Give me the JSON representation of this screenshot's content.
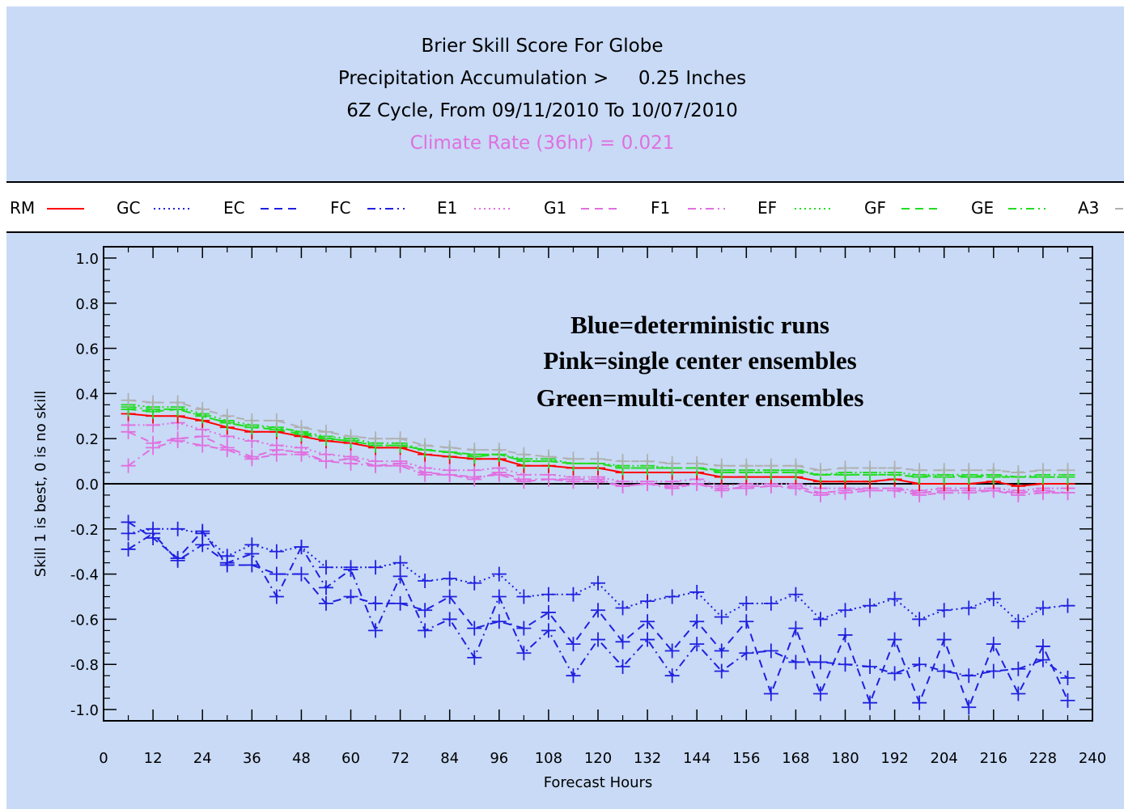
{
  "window": {
    "title_lines": [
      "Brier Skill Score For Globe",
      "Precipitation Accumulation >     0.25 Inches",
      "6Z Cycle, From 09/11/2010 To 10/07/2010",
      "Climate Rate (36hr) = 0.021"
    ]
  },
  "annotation": {
    "lines": [
      "Blue=deterministic runs",
      "Pink=single center ensembles",
      "Green=multi-center ensembles"
    ]
  },
  "colors": {
    "background": "#c8daf6",
    "red": "#ff0000",
    "blue": "#2020e0",
    "pink": "#e070e0",
    "green": "#22dd22",
    "gray": "#b0b0b0"
  },
  "legend": [
    {
      "name": "RM",
      "color": "#ff0000",
      "style": "solid"
    },
    {
      "name": "GC",
      "color": "#2020e0",
      "style": "dotted"
    },
    {
      "name": "EC",
      "color": "#2020e0",
      "style": "dashed"
    },
    {
      "name": "FC",
      "color": "#2020e0",
      "style": "dashdot"
    },
    {
      "name": "E1",
      "color": "#e070e0",
      "style": "dotted"
    },
    {
      "name": "G1",
      "color": "#e070e0",
      "style": "dashed"
    },
    {
      "name": "F1",
      "color": "#e070e0",
      "style": "dashdot"
    },
    {
      "name": "EF",
      "color": "#22dd22",
      "style": "dotted"
    },
    {
      "name": "GF",
      "color": "#22dd22",
      "style": "dashed"
    },
    {
      "name": "GE",
      "color": "#22dd22",
      "style": "dashdot"
    },
    {
      "name": "A3",
      "color": "#b0b0b0",
      "style": "dashed"
    }
  ],
  "chart_data": {
    "type": "line",
    "xlabel": "Forecast Hours",
    "ylabel": "Skill 1 is best, 0 is no skill",
    "xlim": [
      0,
      240
    ],
    "ylim": [
      -1.05,
      1.05
    ],
    "xticks": [
      "0",
      "12",
      "24",
      "36",
      "48",
      "60",
      "72",
      "84",
      "96",
      "108",
      "120",
      "132",
      "144",
      "156",
      "168",
      "180",
      "192",
      "204",
      "216",
      "228",
      "240"
    ],
    "yticks": [
      "1.0",
      "0.8",
      "0.6",
      "0.4",
      "0.2",
      "0.0",
      "-0.2",
      "-0.4",
      "-0.6",
      "-0.8",
      "-1.0"
    ],
    "x": [
      6,
      12,
      18,
      24,
      30,
      36,
      42,
      48,
      54,
      60,
      66,
      72,
      78,
      84,
      90,
      96,
      102,
      108,
      114,
      120,
      126,
      132,
      138,
      144,
      150,
      156,
      162,
      168,
      174,
      180,
      186,
      192,
      198,
      204,
      210,
      216,
      222,
      228,
      234
    ],
    "series": [
      {
        "name": "GC",
        "color": "#2020e0",
        "style": "dotted",
        "values": [
          -0.22,
          -0.2,
          -0.2,
          -0.22,
          -0.32,
          -0.27,
          -0.3,
          -0.28,
          -0.37,
          -0.37,
          -0.37,
          -0.35,
          -0.43,
          -0.42,
          -0.44,
          -0.4,
          -0.5,
          -0.49,
          -0.49,
          -0.44,
          -0.55,
          -0.52,
          -0.5,
          -0.48,
          -0.59,
          -0.53,
          -0.53,
          -0.49,
          -0.6,
          -0.56,
          -0.54,
          -0.51,
          -0.6,
          -0.56,
          -0.55,
          -0.51,
          -0.61,
          -0.55,
          -0.54
        ]
      },
      {
        "name": "EC",
        "color": "#2020e0",
        "style": "dashed",
        "values": [
          -0.17,
          -0.24,
          -0.33,
          -0.21,
          -0.36,
          -0.36,
          -0.4,
          -0.4,
          -0.53,
          -0.5,
          -0.53,
          -0.53,
          -0.56,
          -0.5,
          -0.64,
          -0.61,
          -0.64,
          -0.57,
          -0.71,
          -0.56,
          -0.7,
          -0.61,
          -0.74,
          -0.61,
          -0.74,
          -0.61,
          -0.93,
          -0.64,
          -0.93,
          -0.67,
          -0.97,
          -0.69,
          -0.97,
          -0.69,
          -0.99,
          -0.71,
          -0.93,
          -0.72,
          -0.96
        ]
      },
      {
        "name": "FC",
        "color": "#2020e0",
        "style": "dashdot",
        "values": [
          -0.29,
          -0.22,
          -0.34,
          -0.27,
          -0.35,
          -0.31,
          -0.5,
          -0.28,
          -0.46,
          -0.38,
          -0.65,
          -0.41,
          -0.65,
          -0.6,
          -0.77,
          -0.5,
          -0.75,
          -0.65,
          -0.85,
          -0.69,
          -0.81,
          -0.69,
          -0.85,
          -0.71,
          -0.83,
          -0.75,
          -0.74,
          -0.79,
          -0.79,
          -0.8,
          -0.81,
          -0.84,
          -0.8,
          -0.83,
          -0.85,
          -0.83,
          -0.82,
          -0.78,
          -0.86
        ]
      },
      {
        "name": "E1",
        "color": "#e070e0",
        "style": "dotted",
        "values": [
          0.26,
          0.26,
          0.27,
          0.24,
          0.21,
          0.19,
          0.17,
          0.16,
          0.13,
          0.12,
          0.1,
          0.1,
          0.07,
          0.06,
          0.06,
          0.07,
          0.04,
          0.04,
          0.03,
          0.03,
          0.01,
          0.01,
          0.01,
          0.02,
          -0.01,
          0.0,
          0.0,
          0.0,
          -0.02,
          -0.02,
          -0.02,
          -0.02,
          -0.03,
          -0.02,
          -0.02,
          -0.02,
          -0.03,
          -0.02,
          -0.02
        ]
      },
      {
        "name": "G1",
        "color": "#e070e0",
        "style": "dashed",
        "values": [
          0.23,
          0.18,
          0.2,
          0.21,
          0.16,
          0.12,
          0.15,
          0.14,
          0.1,
          0.11,
          0.08,
          0.09,
          0.05,
          0.04,
          0.03,
          0.04,
          0.01,
          0.02,
          0.01,
          0.01,
          -0.01,
          0.0,
          -0.01,
          0.0,
          -0.02,
          -0.02,
          -0.01,
          -0.01,
          -0.04,
          -0.03,
          -0.02,
          -0.02,
          -0.04,
          -0.03,
          -0.03,
          -0.03,
          -0.04,
          -0.03,
          -0.04
        ]
      },
      {
        "name": "F1",
        "color": "#e070e0",
        "style": "dashdot",
        "values": [
          0.08,
          0.16,
          0.19,
          0.17,
          0.15,
          0.11,
          0.13,
          0.13,
          0.1,
          0.09,
          0.08,
          0.08,
          0.04,
          0.04,
          0.02,
          0.05,
          0.02,
          0.02,
          0.02,
          0.02,
          -0.01,
          0.0,
          -0.02,
          0.0,
          -0.03,
          -0.01,
          -0.01,
          -0.02,
          -0.05,
          -0.04,
          -0.03,
          -0.03,
          -0.05,
          -0.04,
          -0.04,
          -0.03,
          -0.05,
          -0.04,
          -0.04
        ]
      },
      {
        "name": "RM",
        "color": "#ff0000",
        "style": "solid",
        "values": [
          0.31,
          0.3,
          0.3,
          0.28,
          0.25,
          0.23,
          0.23,
          0.21,
          0.19,
          0.18,
          0.16,
          0.16,
          0.13,
          0.12,
          0.11,
          0.11,
          0.08,
          0.08,
          0.07,
          0.07,
          0.05,
          0.05,
          0.05,
          0.05,
          0.03,
          0.03,
          0.03,
          0.03,
          0.01,
          0.01,
          0.01,
          0.02,
          0.0,
          0.0,
          0.0,
          0.01,
          -0.01,
          0.0,
          0.0
        ]
      },
      {
        "name": "EF",
        "color": "#22dd22",
        "style": "dotted",
        "values": [
          0.35,
          0.34,
          0.34,
          0.31,
          0.28,
          0.26,
          0.25,
          0.23,
          0.21,
          0.2,
          0.18,
          0.18,
          0.15,
          0.14,
          0.13,
          0.13,
          0.11,
          0.11,
          0.09,
          0.09,
          0.08,
          0.08,
          0.07,
          0.07,
          0.06,
          0.06,
          0.06,
          0.06,
          0.04,
          0.05,
          0.05,
          0.05,
          0.04,
          0.04,
          0.04,
          0.04,
          0.03,
          0.04,
          0.04
        ]
      },
      {
        "name": "GF",
        "color": "#22dd22",
        "style": "dashed",
        "values": [
          0.33,
          0.32,
          0.33,
          0.3,
          0.27,
          0.25,
          0.24,
          0.22,
          0.2,
          0.19,
          0.17,
          0.17,
          0.15,
          0.14,
          0.12,
          0.13,
          0.1,
          0.1,
          0.09,
          0.09,
          0.07,
          0.07,
          0.07,
          0.07,
          0.05,
          0.05,
          0.05,
          0.05,
          0.04,
          0.04,
          0.04,
          0.04,
          0.03,
          0.03,
          0.03,
          0.03,
          0.03,
          0.03,
          0.03
        ]
      },
      {
        "name": "GE",
        "color": "#22dd22",
        "style": "dashdot",
        "values": [
          0.34,
          0.33,
          0.33,
          0.3,
          0.27,
          0.25,
          0.25,
          0.23,
          0.2,
          0.19,
          0.17,
          0.17,
          0.15,
          0.14,
          0.13,
          0.13,
          0.1,
          0.1,
          0.09,
          0.09,
          0.07,
          0.07,
          0.07,
          0.07,
          0.06,
          0.06,
          0.06,
          0.06,
          0.04,
          0.04,
          0.04,
          0.04,
          0.03,
          0.04,
          0.03,
          0.04,
          0.03,
          0.03,
          0.03
        ]
      },
      {
        "name": "A3",
        "color": "#b0b0b0",
        "style": "dashed",
        "values": [
          0.37,
          0.36,
          0.36,
          0.33,
          0.3,
          0.28,
          0.28,
          0.25,
          0.23,
          0.21,
          0.2,
          0.2,
          0.17,
          0.16,
          0.15,
          0.15,
          0.13,
          0.12,
          0.11,
          0.11,
          0.1,
          0.1,
          0.09,
          0.09,
          0.08,
          0.08,
          0.08,
          0.08,
          0.06,
          0.07,
          0.07,
          0.07,
          0.06,
          0.06,
          0.06,
          0.06,
          0.05,
          0.06,
          0.06
        ]
      }
    ]
  }
}
